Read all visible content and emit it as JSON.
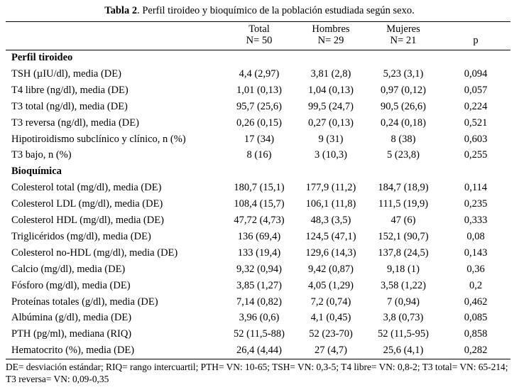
{
  "caption": {
    "label": "Tabla 2",
    "text": ". Perfil tiroideo y bioquímico de la población estudiada según sexo."
  },
  "columns": [
    {
      "name": "Total",
      "n": "N= 50"
    },
    {
      "name": "Hombres",
      "n": "N= 29"
    },
    {
      "name": "Mujeres",
      "n": "N= 21"
    },
    {
      "name": "",
      "n": "p"
    }
  ],
  "sections": [
    {
      "title": "Perfil tiroideo",
      "rows": [
        {
          "label": "TSH (µIU/dl), media (DE)",
          "total": "4,4 (2,97)",
          "hombres": "3,81 (2,8)",
          "mujeres": "5,23 (3,1)",
          "p": "0,094"
        },
        {
          "label": "T4 libre (ng/dl), media (DE)",
          "total": "1,01 (0,13)",
          "hombres": "1,04 (0,13)",
          "mujeres": "0,97 (0,12)",
          "p": "0,057"
        },
        {
          "label": "T3 total (ng/dl), media (DE)",
          "total": "95,7 (25,6)",
          "hombres": "99,5 (24,7)",
          "mujeres": "90,5 (26,6)",
          "p": "0,224"
        },
        {
          "label": "T3 reversa (ng/dl), media (DE)",
          "total": "0,26 (0,15)",
          "hombres": "0,27 (0,13)",
          "mujeres": "0,24 (0,18)",
          "p": "0,521"
        },
        {
          "label": "Hipotiroidismo subclínico y clínico, n (%)",
          "total": "17 (34)",
          "hombres": "9 (31)",
          "mujeres": "8 (38)",
          "p": "0,603"
        },
        {
          "label": "T3 bajo, n (%)",
          "total": "8 (16)",
          "hombres": "3 (10,3)",
          "mujeres": "5 (23,8)",
          "p": "0,255"
        }
      ]
    },
    {
      "title": "Bioquímica",
      "rows": [
        {
          "label": "Colesterol total (mg/dl), media (DE)",
          "total": "180,7 (15,1)",
          "hombres": "177,9 (11,2)",
          "mujeres": "184,7 (18,9)",
          "p": "0,114"
        },
        {
          "label": "Colesterol LDL (mg/dl), media (DE)",
          "total": "108,4 (15,7)",
          "hombres": "106,1 (11,8)",
          "mujeres": "111,5 (19,9)",
          "p": "0,235"
        },
        {
          "label": "Colesterol HDL (mg/dl), media (DE)",
          "total": "47,72 (4,73)",
          "hombres": "48,3 (3,5)",
          "mujeres": "47 (6)",
          "p": "0,333"
        },
        {
          "label": "Triglicéridos (mg/dl), media (DE)",
          "total": "136 (69,4)",
          "hombres": "124,5 (47,1)",
          "mujeres": "152,1 (90,7)",
          "p": "0,08"
        },
        {
          "label": "Colesterol no-HDL (mg/dl), media (DE)",
          "total": "133 (19,4)",
          "hombres": "129,6 (14,3)",
          "mujeres": "137,8 (24,5)",
          "p": "0,143"
        },
        {
          "label": "Calcio (mg/dl), media (DE)",
          "total": "9,32 (0,94)",
          "hombres": "9,42 (0,87)",
          "mujeres": "9,18 (1)",
          "p": "0,36"
        },
        {
          "label": "Fósforo (mg/dl), media (DE)",
          "total": "3,85 (1,27)",
          "hombres": "4,05 (1,29)",
          "mujeres": "3,58 (1,22)",
          "p": "0,2"
        },
        {
          "label": "Proteínas totales (g/dl), media (DE)",
          "total": "7,14 (0,82)",
          "hombres": "7,2 (0,74)",
          "mujeres": "7 (0,94)",
          "p": "0,462"
        },
        {
          "label": "Albúmina (g/dl), media (DE)",
          "total": "3,96 (0,6)",
          "hombres": "4,1 (0,45)",
          "mujeres": "3,8 (0,73)",
          "p": "0,085"
        },
        {
          "label": "PTH (pg/ml), mediana (RIQ)",
          "total": "52 (11,5-88)",
          "hombres": "52 (23-70)",
          "mujeres": "52 (11,5-95)",
          "p": "0,858"
        },
        {
          "label": "Hematocrito (%), media (DE)",
          "total": "26,4 (4,44)",
          "hombres": "27 (4,7)",
          "mujeres": "25,6 (4,1)",
          "p": "0,282"
        }
      ]
    }
  ],
  "footnote": "DE= desviación estándar; RIQ= rango intercuartil; PTH= VN: 10-65; TSH= VN: 0,3-5; T4 libre= VN: 0,8-2; T3 total= VN: 65-214; T3 reversa= VN: 0,09-0,35"
}
